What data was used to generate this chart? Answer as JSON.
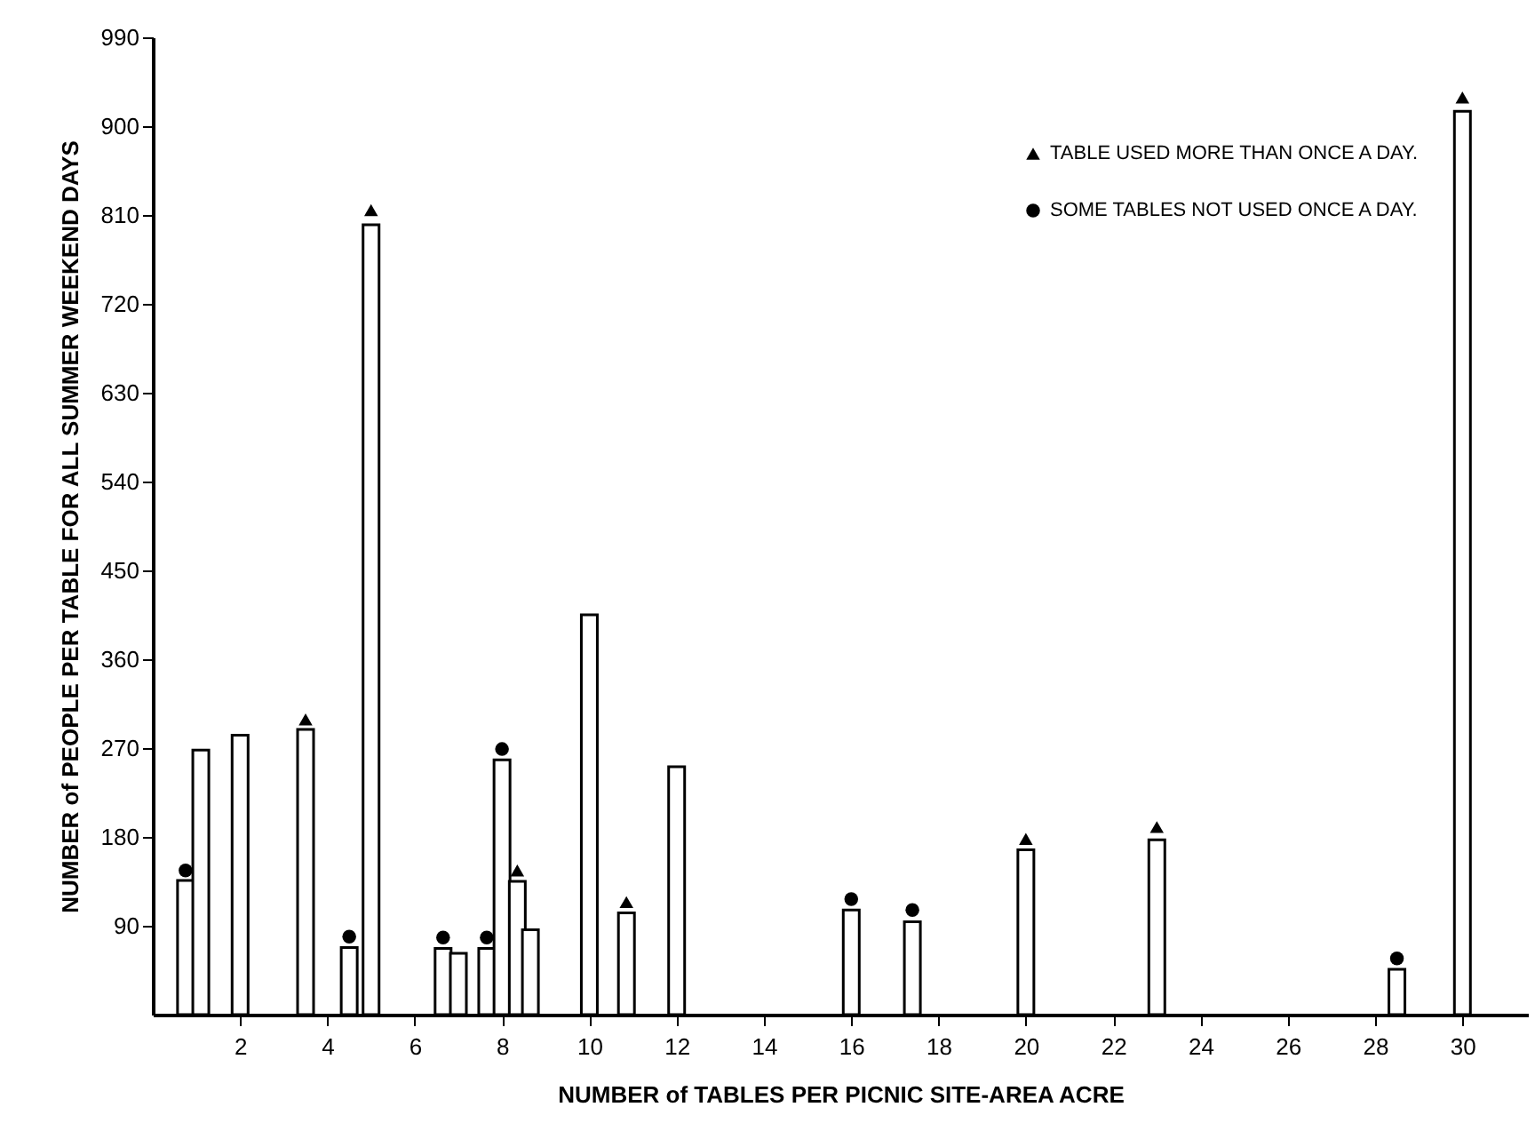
{
  "chart_data": {
    "type": "bar",
    "xlabel": "NUMBER of TABLES PER PICNIC SITE-AREA ACRE",
    "ylabel": "NUMBER of PEOPLE PER TABLE FOR ALL SUMMER WEEKEND DAYS",
    "xlim": [
      0,
      31.5
    ],
    "xticks": [
      2,
      4,
      6,
      8,
      10,
      12,
      14,
      16,
      18,
      20,
      22,
      24,
      26,
      28,
      30
    ],
    "ylim": [
      0,
      990
    ],
    "yticks": [
      90,
      180,
      270,
      360,
      450,
      540,
      630,
      720,
      810,
      900,
      990
    ],
    "grid": false,
    "legend": "top right",
    "series": [
      {
        "color": "#ffffff",
        "x": [
          0.75,
          1.1,
          2.0,
          3.5,
          4.5,
          5.0,
          6.65,
          7.0,
          7.65,
          8.0,
          8.35,
          8.65,
          10.0,
          10.85,
          12.0,
          16.0,
          17.4,
          20.0,
          23.0,
          28.5,
          30.0
        ],
        "values": [
          136,
          268,
          283,
          289,
          68,
          800,
          67,
          62,
          67,
          258,
          135,
          86,
          405,
          103,
          251,
          106,
          94,
          167,
          177,
          46,
          915
        ]
      },
      {
        "type": "scatter",
        "name": "TABLE USED MORE THAN ONCE A DAY.",
        "marker": "triangle",
        "color": "#000000",
        "x": [
          3.5,
          5.0,
          8.35,
          10.85,
          20.0,
          23.0,
          30.0
        ],
        "values": [
          299,
          815,
          146,
          114,
          178,
          190,
          929
        ]
      },
      {
        "type": "scatter",
        "name": "SOME TABLES NOT USED ONCE A DAY.",
        "marker": "circle",
        "color": "#000000",
        "x": [
          0.75,
          4.5,
          6.65,
          7.65,
          8.0,
          16.0,
          17.4,
          28.5
        ],
        "values": [
          146,
          79,
          78,
          78,
          269,
          117,
          106,
          57
        ]
      }
    ]
  }
}
